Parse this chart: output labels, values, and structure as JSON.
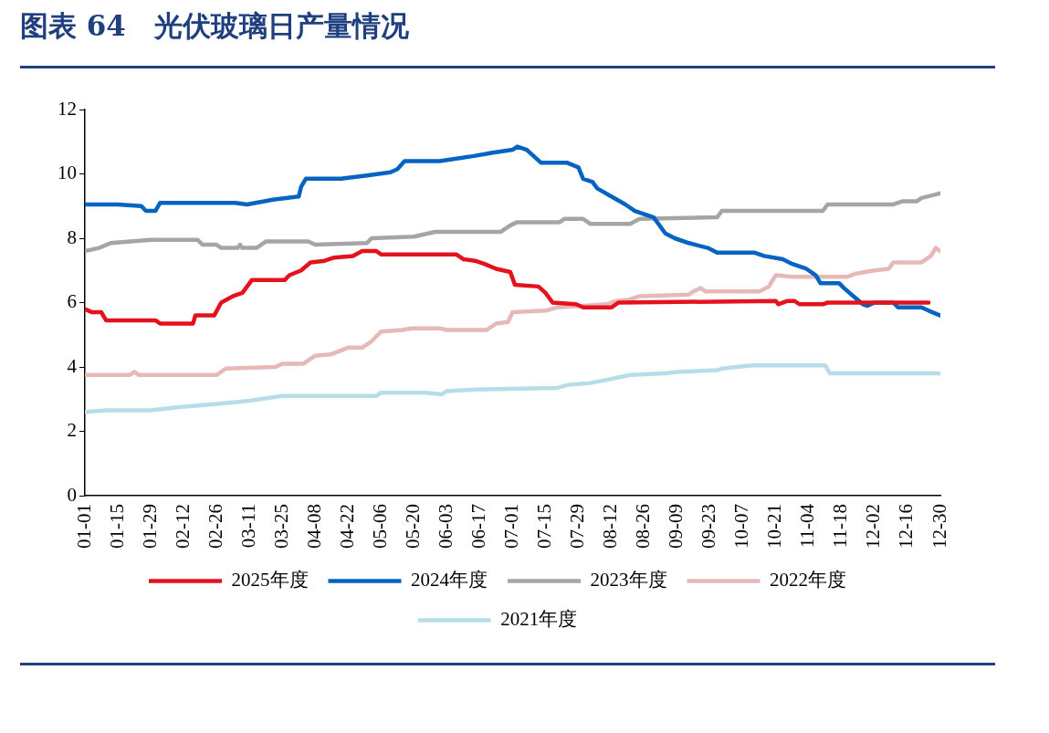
{
  "chart_data": {
    "type": "line",
    "title": "图表 64　光伏玻璃日产量情况",
    "xlim": [
      "--01-01",
      "--12-30"
    ],
    "xticks": [
      {
        "value": "--01-01",
        "label": "01-01"
      },
      {
        "value": "--01-15",
        "label": "01-15"
      },
      {
        "value": "--01-29",
        "label": "01-29"
      },
      {
        "value": "--02-12",
        "label": "02-12"
      },
      {
        "value": "--02-26",
        "label": "02-26"
      },
      {
        "value": "--03-11",
        "label": "03-11"
      },
      {
        "value": "--03-25",
        "label": "03-25"
      },
      {
        "value": "--04-08",
        "label": "04-08"
      },
      {
        "value": "--04-22",
        "label": "04-22"
      },
      {
        "value": "--05-06",
        "label": "05-06"
      },
      {
        "value": "--05-20",
        "label": "05-20"
      },
      {
        "value": "--06-03",
        "label": "06-03"
      },
      {
        "value": "--06-17",
        "label": "06-17"
      },
      {
        "value": "--07-01",
        "label": "07-01"
      },
      {
        "value": "--07-15",
        "label": "07-15"
      },
      {
        "value": "--07-29",
        "label": "07-29"
      },
      {
        "value": "--08-12",
        "label": "08-12"
      },
      {
        "value": "--08-26",
        "label": "08-26"
      },
      {
        "value": "--09-09",
        "label": "09-09"
      },
      {
        "value": "--09-23",
        "label": "09-23"
      },
      {
        "value": "--10-07",
        "label": "10-07"
      },
      {
        "value": "--10-21",
        "label": "10-21"
      },
      {
        "value": "--11-04",
        "label": "11-04"
      },
      {
        "value": "--11-18",
        "label": "11-18"
      },
      {
        "value": "--12-02",
        "label": "12-02"
      },
      {
        "value": "--12-16",
        "label": "12-16"
      },
      {
        "value": "--12-30",
        "label": "12-30"
      }
    ],
    "ylim": [
      0,
      12
    ],
    "yticks": [
      0,
      2,
      4,
      6,
      8,
      10,
      12
    ],
    "grid": false,
    "legend": "bottom",
    "marker": "none",
    "line_style": "solid",
    "series": [
      {
        "name": "2025年度",
        "color": "#e3121c",
        "x": [
          "--01-01",
          "--01-04",
          "--01-08",
          "--01-10",
          "--01-31",
          "--02-02",
          "--02-16",
          "--02-17",
          "--02-25",
          "--02-28",
          "--03-04",
          "--03-08",
          "--03-12",
          "--03-26",
          "--03-28",
          "--04-02",
          "--04-06",
          "--04-12",
          "--04-16",
          "--04-24",
          "--04-28",
          "--05-04",
          "--05-06",
          "--06-07",
          "--06-10",
          "--06-15",
          "--06-19",
          "--06-24",
          "--06-30",
          "--07-02",
          "--07-12",
          "--07-15",
          "--07-18",
          "--07-28",
          "--07-31",
          "--08-12",
          "--08-15",
          "--10-21",
          "--10-22",
          "--10-26",
          "--10-29",
          "--10-31",
          "--11-10",
          "--11-12",
          "--12-25"
        ],
        "values": [
          5.8,
          5.7,
          5.7,
          5.45,
          5.45,
          5.35,
          5.35,
          5.6,
          5.6,
          6.0,
          6.2,
          6.3,
          6.7,
          6.7,
          6.85,
          7.0,
          7.25,
          7.3,
          7.4,
          7.45,
          7.6,
          7.6,
          7.5,
          7.5,
          7.35,
          7.3,
          7.2,
          7.05,
          6.95,
          6.55,
          6.5,
          6.3,
          6.0,
          5.95,
          5.85,
          5.85,
          6.0,
          6.05,
          5.95,
          6.05,
          6.05,
          5.95,
          5.95,
          6.0,
          6.0
        ]
      },
      {
        "name": "2024年度",
        "color": "#0563c1",
        "x": [
          "--01-01",
          "--01-15",
          "--01-25",
          "--01-27",
          "--01-31",
          "--02-02",
          "--03-05",
          "--03-10",
          "--03-21",
          "--04-01",
          "--04-02",
          "--04-04",
          "--04-19",
          "--04-30",
          "--05-10",
          "--05-13",
          "--05-16",
          "--05-31",
          "--06-14",
          "--06-22",
          "--07-01",
          "--07-03",
          "--07-07",
          "--07-10",
          "--07-13",
          "--07-24",
          "--07-29",
          "--07-31",
          "--08-04",
          "--08-06",
          "--08-12",
          "--08-18",
          "--08-22",
          "--08-30",
          "--09-04",
          "--09-08",
          "--09-14",
          "--09-22",
          "--09-26",
          "--10-12",
          "--10-16",
          "--10-24",
          "--10-28",
          "--11-03",
          "--11-07",
          "--11-09",
          "--11-17",
          "--11-19",
          "--11-23",
          "--11-27",
          "--11-29",
          "--12-02",
          "--12-10",
          "--12-12",
          "--12-22",
          "--12-25",
          "--12-30"
        ],
        "values": [
          9.05,
          9.05,
          9.0,
          8.85,
          8.85,
          9.1,
          9.1,
          9.05,
          9.2,
          9.3,
          9.6,
          9.85,
          9.85,
          9.95,
          10.05,
          10.15,
          10.4,
          10.4,
          10.55,
          10.65,
          10.75,
          10.85,
          10.75,
          10.55,
          10.35,
          10.35,
          10.2,
          9.85,
          9.75,
          9.55,
          9.3,
          9.05,
          8.85,
          8.65,
          8.15,
          8.0,
          7.85,
          7.7,
          7.55,
          7.55,
          7.45,
          7.35,
          7.2,
          7.05,
          6.85,
          6.6,
          6.6,
          6.45,
          6.2,
          5.95,
          5.9,
          6.0,
          6.0,
          5.85,
          5.85,
          5.75,
          5.6
        ]
      },
      {
        "name": "2023年度",
        "color": "#a5a5a5",
        "x": [
          "--01-01",
          "--01-07",
          "--01-12",
          "--01-29",
          "--02-18",
          "--02-20",
          "--02-26",
          "--02-28",
          "--03-06",
          "--03-07",
          "--03-08",
          "--03-14",
          "--03-18",
          "--04-05",
          "--04-08",
          "--04-30",
          "--05-02",
          "--05-20",
          "--05-29",
          "--06-26",
          "--06-30",
          "--07-03",
          "--07-21",
          "--07-23",
          "--07-31",
          "--08-03",
          "--08-20",
          "--08-24",
          "--09-26",
          "--09-28",
          "--11-10",
          "--11-12",
          "--12-10",
          "--12-14",
          "--12-20",
          "--12-22",
          "--12-30"
        ],
        "values": [
          7.6,
          7.7,
          7.85,
          7.95,
          7.95,
          7.8,
          7.8,
          7.7,
          7.7,
          7.8,
          7.7,
          7.7,
          7.9,
          7.9,
          7.8,
          7.85,
          8.0,
          8.05,
          8.2,
          8.2,
          8.4,
          8.5,
          8.5,
          8.6,
          8.6,
          8.45,
          8.45,
          8.6,
          8.65,
          8.85,
          8.85,
          9.05,
          9.05,
          9.15,
          9.15,
          9.25,
          9.4
        ]
      },
      {
        "name": "2022年度",
        "color": "#e6b9b8",
        "x": [
          "--01-01",
          "--01-20",
          "--01-22",
          "--01-24",
          "--02-26",
          "--03-01",
          "--03-22",
          "--03-25",
          "--04-03",
          "--04-08",
          "--04-15",
          "--04-22",
          "--04-28",
          "--05-02",
          "--05-06",
          "--05-15",
          "--05-19",
          "--05-31",
          "--06-03",
          "--06-20",
          "--06-24",
          "--06-29",
          "--07-01",
          "--07-15",
          "--07-20",
          "--07-31",
          "--08-10",
          "--08-14",
          "--08-20",
          "--08-24",
          "--09-14",
          "--09-16",
          "--09-19",
          "--09-21",
          "--10-14",
          "--10-18",
          "--10-21",
          "--10-28",
          "--11-20",
          "--11-24",
          "--12-02",
          "--12-08",
          "--12-10",
          "--12-22",
          "--12-26",
          "--12-28",
          "--12-30"
        ],
        "values": [
          3.75,
          3.75,
          3.85,
          3.75,
          3.75,
          3.95,
          4.0,
          4.1,
          4.1,
          4.35,
          4.4,
          4.6,
          4.6,
          4.8,
          5.1,
          5.15,
          5.2,
          5.2,
          5.15,
          5.15,
          5.35,
          5.4,
          5.7,
          5.75,
          5.85,
          5.9,
          5.95,
          6.05,
          6.1,
          6.2,
          6.25,
          6.35,
          6.45,
          6.35,
          6.35,
          6.5,
          6.85,
          6.8,
          6.8,
          6.9,
          7.0,
          7.05,
          7.25,
          7.25,
          7.45,
          7.7,
          7.6
        ]
      },
      {
        "name": "2021年度",
        "color": "#b7dee8",
        "x": [
          "--01-01",
          "--01-10",
          "--01-29",
          "--02-10",
          "--02-26",
          "--03-11",
          "--03-25",
          "--05-04",
          "--05-06",
          "--05-25",
          "--06-01",
          "--06-03",
          "--06-15",
          "--07-20",
          "--07-25",
          "--08-03",
          "--08-10",
          "--08-20",
          "--09-04",
          "--09-10",
          "--09-26",
          "--09-28",
          "--10-11",
          "--11-11",
          "--11-13",
          "--12-30"
        ],
        "values": [
          2.6,
          2.65,
          2.65,
          2.75,
          2.85,
          2.95,
          3.1,
          3.1,
          3.2,
          3.2,
          3.15,
          3.25,
          3.3,
          3.35,
          3.45,
          3.5,
          3.6,
          3.75,
          3.8,
          3.85,
          3.9,
          3.95,
          4.05,
          4.05,
          3.8,
          3.8
        ]
      }
    ]
  }
}
